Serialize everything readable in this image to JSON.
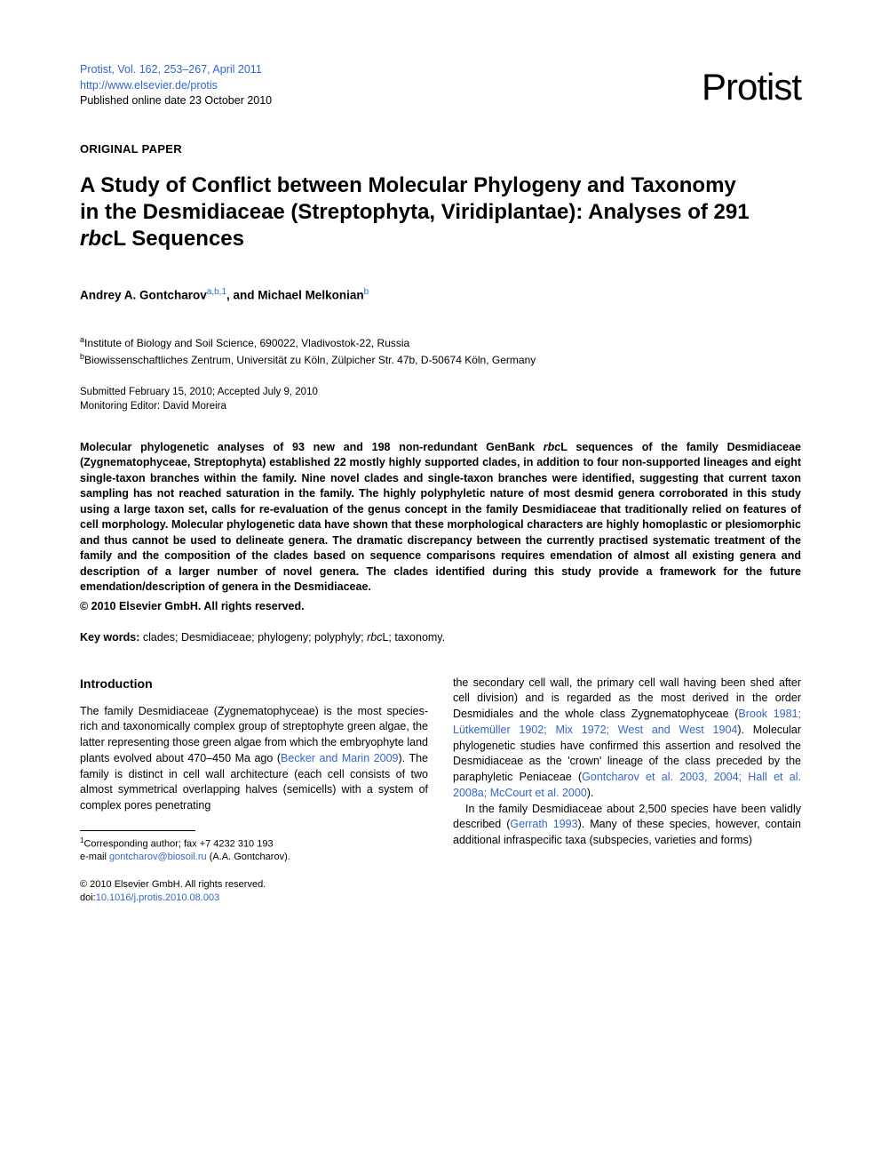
{
  "header": {
    "journal_citation": "Protist, Vol. 162, 253–267, April 2011",
    "journal_url": "http://www.elsevier.de/protis",
    "pub_date": "Published online date 23 October 2010",
    "logo": "Protist"
  },
  "section_label": "ORIGINAL PAPER",
  "title_pre": "A Study of Conflict between Molecular Phylogeny and Taxonomy in the Desmidiaceae (Streptophyta, Viridiplantae): Analyses of 291 ",
  "title_italic": "rbc",
  "title_post": "L Sequences",
  "authors": {
    "a1_name": "Andrey A. Gontcharov",
    "a1_sup": "a,b,1",
    "sep": ", and  ",
    "a2_name": "Michael Melkonian",
    "a2_sup": "b"
  },
  "affiliations": {
    "a_sup": "a",
    "a_text": "Institute of Biology and Soil Science, 690022, Vladivostok-22, Russia",
    "b_sup": "b",
    "b_text": "Biowissenschaftliches Zentrum, Universität zu Köln, Zülpicher Str. 47b, D-50674 Köln, Germany"
  },
  "submission": {
    "line1": "Submitted February 15, 2010; Accepted July 9, 2010",
    "line2": "Monitoring Editor: David Moreira"
  },
  "abstract_parts": {
    "p1": "Molecular phylogenetic analyses of 93 new and 198 non-redundant GenBank ",
    "p1_italic": "rbc",
    "p1_post": "L sequences of the family Desmidiaceae (Zygnematophyceae, Streptophyta) established 22 mostly highly supported clades, in addition to four non-supported lineages and eight single-taxon branches within the family. Nine novel clades and single-taxon branches were identified, suggesting that current taxon sampling has not reached saturation in the family. The highly polyphyletic nature of most desmid genera corroborated in this study using a large taxon set, calls for re-evaluation of the genus concept in the family Desmidiaceae that traditionally relied on features of cell morphology. Molecular phylogenetic data have shown that these morphological characters are highly homoplastic or plesiomorphic and thus cannot be used to delineate genera. The dramatic discrepancy between the currently practised systematic treatment of the family and the composition of the clades based on sequence comparisons requires emendation of almost all existing genera and description of a larger number of novel genera. The clades identified during this study provide a framework for the future emendation/description of genera in the Desmidiaceae."
  },
  "copyright_abs": "© 2010 Elsevier GmbH. All rights reserved.",
  "keywords": {
    "label": "Key words:",
    "text_pre": " clades; Desmidiaceae; phylogeny; polyphyly; ",
    "italic": "rbc",
    "text_post": "L; taxonomy."
  },
  "introduction": {
    "heading": "Introduction",
    "col1_p1_pre": "The family Desmidiaceae (Zygnematophyceae) is the most species-rich and taxonomically complex group of streptophyte green algae, the latter representing those green algae from which the embryophyte land plants evolved about 470–450 Ma ago (",
    "col1_p1_ref": "Becker and Marin 2009",
    "col1_p1_post": "). The family is distinct in cell wall architecture (each cell consists of two almost symmetrical overlapping halves (semicells) with a system of complex pores penetrating",
    "col2_p1_pre": "the secondary cell wall, the primary cell wall having been shed after cell division) and is regarded as the most derived in the order Desmidiales and the whole class Zygnematophyceae (",
    "col2_p1_ref1": "Brook 1981; Lütkemüller 1902; Mix 1972; West and West 1904",
    "col2_p1_mid": "). Molecular phylogenetic studies have confirmed this assertion and resolved the Desmidiaceae as the 'crown' lineage of the class preceded by the paraphyletic Peniaceae (",
    "col2_p1_ref2": "Gontcharov et al. 2003, 2004; Hall et al. 2008a; McCourt et al. 2000",
    "col2_p1_post": ").",
    "col2_p2_pre": "In the family Desmidiaceae about 2,500 species have been validly described (",
    "col2_p2_ref": "Gerrath 1993",
    "col2_p2_post": "). Many of these species, however, contain additional infraspecific taxa (subspecies, varieties and forms)"
  },
  "footnote": {
    "marker": "1",
    "line1": "Corresponding author; fax +7 4232 310 193",
    "email_label": "e-mail ",
    "email": "gontcharov@biosoil.ru",
    "email_post": " (A.A. Gontcharov)."
  },
  "footer": {
    "copyright": "© 2010 Elsevier GmbH. All rights reserved.",
    "doi": "10.1016/j.protis.2010.08.003",
    "doi_label": "doi:"
  }
}
